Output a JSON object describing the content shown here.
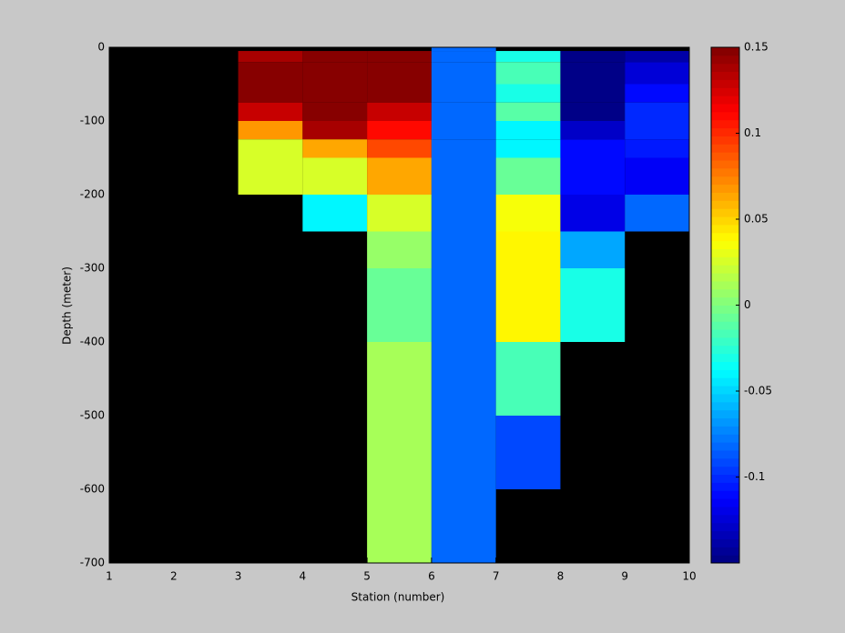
{
  "chart_data": {
    "type": "heatmap",
    "xlabel": "Station (number)",
    "ylabel": "Depth (meter)",
    "x": [
      1,
      2,
      3,
      4,
      5,
      6,
      7,
      8,
      9,
      10
    ],
    "y": [
      0,
      -5,
      -20,
      -50,
      -75,
      -100,
      -125,
      -150,
      -200,
      -250,
      -300,
      -350,
      -400,
      -450,
      -500,
      -550,
      -600,
      -650,
      -700
    ],
    "z": [
      [
        null,
        null,
        null,
        null,
        null,
        -0.08,
        null,
        null,
        null
      ],
      [
        null,
        null,
        0.14,
        0.15,
        0.15,
        -0.08,
        -0.03,
        -0.15,
        -0.14
      ],
      [
        null,
        null,
        0.15,
        0.15,
        0.15,
        -0.08,
        -0.015,
        -0.15,
        -0.125
      ],
      [
        null,
        null,
        0.15,
        0.15,
        0.15,
        -0.08,
        -0.03,
        -0.15,
        -0.11
      ],
      [
        null,
        null,
        0.13,
        0.15,
        0.13,
        -0.08,
        -0.01,
        -0.15,
        -0.1
      ],
      [
        null,
        null,
        0.07,
        0.14,
        0.11,
        -0.08,
        -0.04,
        -0.13,
        -0.1
      ],
      [
        null,
        null,
        0.025,
        0.065,
        0.09,
        -0.08,
        -0.04,
        -0.11,
        -0.105
      ],
      [
        null,
        null,
        0.025,
        0.025,
        0.065,
        -0.08,
        -0.005,
        -0.11,
        -0.115
      ],
      [
        null,
        null,
        null,
        -0.04,
        0.025,
        -0.08,
        0.035,
        -0.12,
        -0.08
      ],
      [
        null,
        null,
        null,
        null,
        0.005,
        -0.08,
        0.04,
        -0.065,
        null
      ],
      [
        null,
        null,
        null,
        null,
        -0.005,
        -0.08,
        0.04,
        -0.03,
        null
      ],
      [
        null,
        null,
        null,
        null,
        -0.005,
        -0.08,
        0.04,
        -0.03,
        null
      ],
      [
        null,
        null,
        null,
        null,
        0.01,
        -0.08,
        -0.015,
        null,
        null
      ],
      [
        null,
        null,
        null,
        null,
        0.01,
        -0.08,
        -0.015,
        null,
        null
      ],
      [
        null,
        null,
        null,
        null,
        0.01,
        -0.08,
        -0.09,
        null,
        null
      ],
      [
        null,
        null,
        null,
        null,
        0.01,
        -0.08,
        -0.09,
        null,
        null
      ],
      [
        null,
        null,
        null,
        null,
        0.01,
        -0.08,
        null,
        null,
        null
      ],
      [
        null,
        null,
        null,
        null,
        0.01,
        -0.08,
        null,
        null,
        null
      ]
    ],
    "xlim": [
      1,
      10
    ],
    "xticks": [
      1,
      2,
      3,
      4,
      5,
      6,
      7,
      8,
      9,
      10
    ],
    "ylim": [
      -700,
      0
    ],
    "yticks": [
      0,
      -100,
      -200,
      -300,
      -400,
      -500,
      -600,
      -700
    ],
    "colormap": "jet",
    "clim": [
      -0.15,
      0.15
    ],
    "cticks": [
      0.15,
      0.1,
      0.05,
      0,
      -0.05,
      -0.1
    ]
  }
}
